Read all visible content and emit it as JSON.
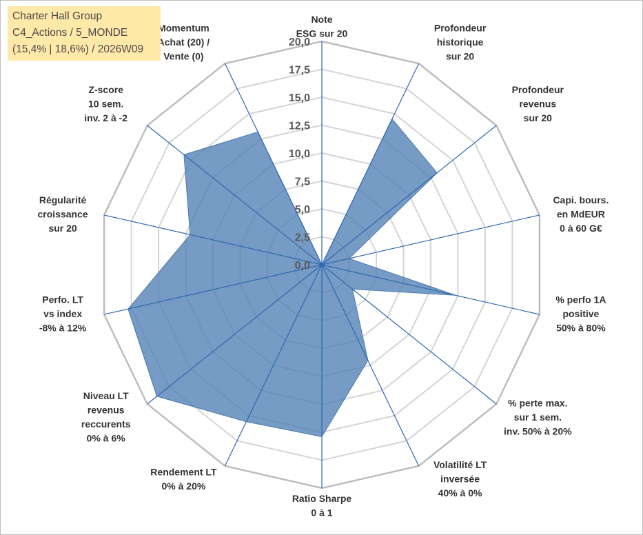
{
  "title_box": {
    "line1": "Charter Hall Group",
    "line2": "C4_Actions / 5_MONDE",
    "line3": "(15,4% | 18,6%) / 2026W09"
  },
  "chart_data": {
    "type": "radar",
    "title": "Charter Hall Group",
    "rmin": 0,
    "rmax": 20,
    "ticks": [
      "0,0",
      "2,5",
      "5,0",
      "7,5",
      "10,0",
      "12,5",
      "15,0",
      "17,5",
      "20,0"
    ],
    "tick_values": [
      0,
      2.5,
      5,
      7.5,
      10,
      12.5,
      15,
      17.5,
      20
    ],
    "categories": [
      [
        "Note",
        "ESG sur 20"
      ],
      [
        "Profondeur",
        "historique",
        "sur 20"
      ],
      [
        "Profondeur",
        "revenus",
        "sur 20"
      ],
      [
        "Capi. bours.",
        "en MdEUR",
        "0 à 60 G€"
      ],
      [
        "% perfo 1A",
        "positive",
        "50% à 80%"
      ],
      [
        "% perte max.",
        "sur 1 sem.",
        "inv. 50% à 20%"
      ],
      [
        "Volatilité LT",
        "inversée",
        "40% à 0%"
      ],
      [
        "Ratio Sharpe",
        "0 à 1"
      ],
      [
        "Rendement LT",
        "0% à 20%"
      ],
      [
        "Niveau LT",
        "revenus",
        "reccurents",
        "0% à 6%"
      ],
      [
        "Perfo. LT",
        "vs index",
        "-8% à 12%"
      ],
      [
        "Régularité",
        "croissance",
        "sur 20"
      ],
      [
        "Z-score",
        "10 sem.",
        "inv. 2 à -2"
      ],
      [
        "Momentum",
        "Achat (20) /",
        "Vente (0)"
      ]
    ],
    "series": [
      {
        "name": "Charter Hall Group",
        "color": "#4f7fb3",
        "values": [
          0,
          14.5,
          13.2,
          2.5,
          12.3,
          3.5,
          9.5,
          15.4,
          15.6,
          18.9,
          17.8,
          12.1,
          15.8,
          13.2
        ]
      }
    ],
    "grid": true,
    "legend": "none"
  }
}
